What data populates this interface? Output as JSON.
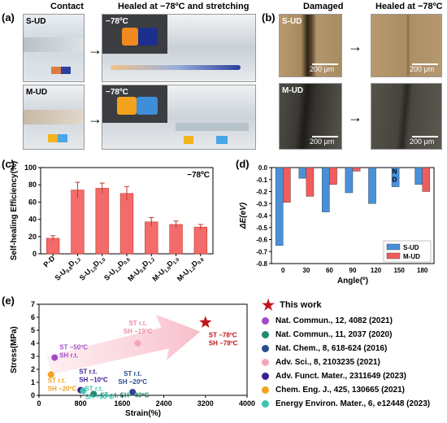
{
  "panel_a": {
    "letter": "(a)",
    "contact_title": "Contact",
    "healed_title": "Healed at −78ºC and stretching",
    "row1_label": "S-UD",
    "row2_label": "M-UD",
    "temp_tag_1": "−78ºC",
    "temp_tag_2": "−78ºC"
  },
  "panel_b": {
    "letter": "(b)",
    "damaged_title": "Damaged",
    "healed_title": "Healed at −78ºC",
    "row1_label": "S-UD",
    "row2_label": "M-UD",
    "scale_1": "200 μm",
    "scale_2": "200 μm",
    "scale_3": "200 μm",
    "scale_4": "200 μm"
  },
  "panel_c": {
    "letter": "(c)"
  },
  "panel_d": {
    "letter": "(d)"
  },
  "panel_e": {
    "letter": "(e)"
  },
  "chart_data": [
    {
      "id": "c",
      "type": "bar",
      "annotation": "−78ºC",
      "ylabel": "Self-healing Efficiency(%)",
      "ylim": [
        0,
        100
      ],
      "yticks": [
        0,
        20,
        40,
        60,
        80,
        100
      ],
      "categories": [
        "P-D",
        "S-U0.8D1.2",
        "S-U1.0D1.0",
        "S-U1.2D0.8",
        "M-U0.8D1.2",
        "M-U1.0D1.0",
        "M-U1.2D0.8"
      ],
      "category_parts": [
        {
          "base": "P-D",
          "subs": []
        },
        {
          "base": "S-U",
          "subs": [
            "0.8",
            "D",
            "1.2"
          ]
        },
        {
          "base": "S-U",
          "subs": [
            "1.0",
            "D",
            "1.0"
          ]
        },
        {
          "base": "S-U",
          "subs": [
            "1.2",
            "D",
            "0.8"
          ]
        },
        {
          "base": "M-U",
          "subs": [
            "0.8",
            "D",
            "1.2"
          ]
        },
        {
          "base": "M-U",
          "subs": [
            "1.0",
            "D",
            "1.0"
          ]
        },
        {
          "base": "M-U",
          "subs": [
            "1.2",
            "D",
            "0.8"
          ]
        }
      ],
      "values": [
        18,
        74,
        76,
        70,
        37,
        34,
        31
      ],
      "errors": [
        3,
        9,
        6,
        8,
        5,
        4,
        3
      ],
      "bar_color": "#f46b6b",
      "bar_edge": "#c0392b"
    },
    {
      "id": "d",
      "type": "bar",
      "xlabel": "Angle(º)",
      "ylabel": "ΔE(eV)",
      "ylim": [
        -0.8,
        0
      ],
      "yticks": [
        0,
        -0.1,
        -0.2,
        -0.3,
        -0.4,
        -0.5,
        -0.6,
        -0.7,
        -0.8
      ],
      "ytick_labels": [
        "0.0",
        "-0.1",
        "-0.2",
        "-0.3",
        "-0.4",
        "-0.5",
        "-0.6",
        "-0.7",
        "-0.8"
      ],
      "categories": [
        "0",
        "30",
        "60",
        "90",
        "120",
        "150",
        "180"
      ],
      "series": [
        {
          "name": "S-UD",
          "color": "#4a90d9",
          "values": [
            -0.65,
            -0.09,
            -0.37,
            -0.21,
            -0.3,
            -0.16,
            -0.14
          ]
        },
        {
          "name": "M-UD",
          "color": "#f25c5c",
          "values": [
            -0.29,
            -0.24,
            -0.14,
            -0.03,
            null,
            null,
            -0.2
          ]
        }
      ],
      "annotations": [
        "N",
        "D"
      ],
      "legend": "bottom-right"
    },
    {
      "id": "e",
      "type": "scatter",
      "xlabel": "Strain(%)",
      "ylabel": "Stress(MPa)",
      "xlim": [
        0,
        4000
      ],
      "ylim": [
        0,
        7
      ],
      "xticks": [
        0,
        800,
        1600,
        2400,
        3200,
        4000
      ],
      "yticks": [
        0,
        1,
        2,
        3,
        4,
        5,
        6,
        7
      ],
      "points": [
        {
          "series": "This work",
          "x": 3200,
          "y": 5.6,
          "color": "#c0161c",
          "marker": "star",
          "label_lines": [
            "ST −78ºC",
            "SH −78ºC"
          ],
          "label_color": "#c0161c"
        },
        {
          "series": "Nat. Commun., 12, 4082 (2021)",
          "x": 300,
          "y": 2.9,
          "color": "#a64ac9",
          "marker": "circle",
          "label_lines": [
            "ST −50ºC",
            "SH r.t."
          ],
          "label_color": "#a64ac9"
        },
        {
          "series": "Nat. Commun., 11, 2037 (2020)",
          "x": 1050,
          "y": 0.1,
          "color": "#1f8a70",
          "marker": "circle",
          "label_lines": [
            "ST r.t.  SH −40ºC"
          ],
          "label_color": "#1f8a70"
        },
        {
          "series": "Nat. Chem., 8, 618-624 (2016)",
          "x": 1800,
          "y": 0.25,
          "color": "#2b4c8c",
          "marker": "circle",
          "label_lines": [
            "ST r.t.",
            "SH −20ºC"
          ],
          "label_color": "#2b4c8c"
        },
        {
          "series": "Adv. Sci., 8, 2103235 (2021)",
          "x": 1900,
          "y": 4.0,
          "color": "#f4a6b4",
          "marker": "circle",
          "label_lines": [
            "ST r.t.",
            "SH −19ºC"
          ],
          "label_color": "#e88fa1"
        },
        {
          "series": "Adv. Funct. Mater., 2311649 (2023)",
          "x": 800,
          "y": 0.4,
          "color": "#3d1f8f",
          "marker": "circle",
          "label_lines": [
            "ST r.t.",
            "SH −10ºC"
          ],
          "label_color": "#3d1f8f"
        },
        {
          "series": "Chem. Eng. J., 425, 130665 (2021)",
          "x": 230,
          "y": 1.6,
          "color": "#f5a020",
          "marker": "circle",
          "label_lines": [
            "ST r.t.",
            "SH −20ºC"
          ],
          "label_color": "#f5a020"
        },
        {
          "series": "Energy Environ. Mater., 6, e12448 (2023)",
          "x": 850,
          "y": 0.35,
          "color": "#40c4b0",
          "marker": "circle",
          "label_lines": [
            "ST r.t.",
            "SH −50ºC"
          ],
          "label_color": "#40c4b0"
        }
      ]
    }
  ]
}
